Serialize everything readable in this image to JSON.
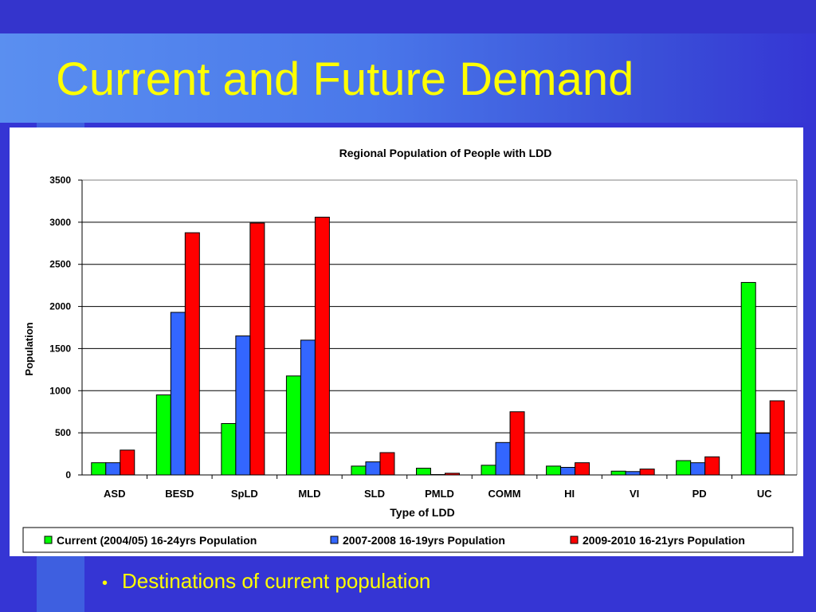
{
  "slide": {
    "title": "Current and Future Demand",
    "bullet": "Destinations of current population"
  },
  "colors": {
    "title_text": "#ffff00",
    "series": [
      "#00ff00",
      "#3366ff",
      "#ff0000"
    ]
  },
  "chart_data": {
    "type": "bar",
    "title": "Regional Population of People with LDD",
    "xlabel": "Type of LDD",
    "ylabel": "Population",
    "ylim": [
      0,
      3500
    ],
    "yticks": [
      0,
      500,
      1000,
      1500,
      2000,
      2500,
      3000,
      3500
    ],
    "grid": true,
    "legend": "bottom",
    "categories": [
      "ASD",
      "BESD",
      "SpLD",
      "MLD",
      "SLD",
      "PMLD",
      "COMM",
      "HI",
      "VI",
      "PD",
      "UC"
    ],
    "series": [
      {
        "name": "Current (2004/05) 16-24yrs Population",
        "color": "#00ff00",
        "values": [
          145,
          950,
          610,
          1175,
          105,
          80,
          115,
          105,
          45,
          170,
          2285
        ]
      },
      {
        "name": "2007-2008 16-19yrs Population",
        "color": "#3366ff",
        "values": [
          145,
          1930,
          1650,
          1600,
          155,
          5,
          385,
          90,
          40,
          145,
          495
        ]
      },
      {
        "name": "2009-2010 16-21yrs Population",
        "color": "#ff0000",
        "values": [
          295,
          2875,
          2990,
          3060,
          265,
          20,
          750,
          145,
          70,
          215,
          880
        ]
      }
    ]
  }
}
